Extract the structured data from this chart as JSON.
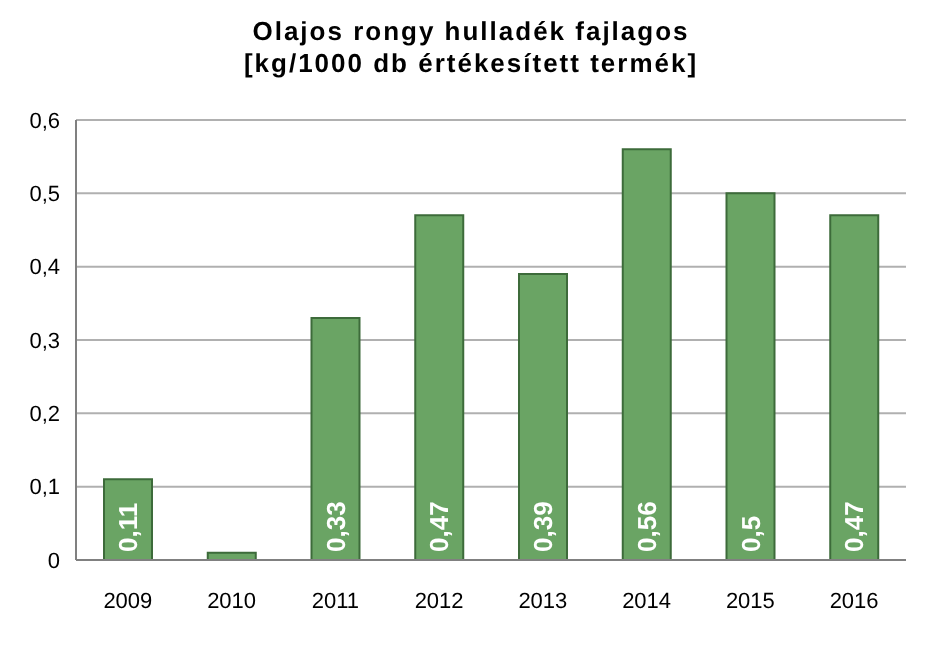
{
  "chart_data": {
    "type": "bar",
    "title": "Olajos rongy hulladék fajlagos",
    "subtitle": "[kg/1000 db értékesített termék]",
    "categories": [
      "2009",
      "2010",
      "2011",
      "2012",
      "2013",
      "2014",
      "2015",
      "2016"
    ],
    "values": [
      0.11,
      0.01,
      0.33,
      0.47,
      0.39,
      0.56,
      0.5,
      0.47
    ],
    "value_labels": [
      "0,11",
      null,
      "0,33",
      "0,47",
      "0,39",
      "0,56",
      "0,5",
      "0,47"
    ],
    "color": "#6aa464",
    "ylim": [
      0,
      0.6
    ],
    "yticks": [
      0,
      {
        "value": 0.1,
        "label": "0,1"
      },
      {
        "value": 0.2,
        "label": "0,2"
      },
      {
        "value": 0.3,
        "label": "0,3"
      },
      {
        "value": 0.4,
        "label": "0,4"
      },
      {
        "value": 0.5,
        "label": "0,5"
      },
      {
        "value": 0.6,
        "label": "0,6"
      }
    ],
    "grid": "y",
    "legend": false
  }
}
